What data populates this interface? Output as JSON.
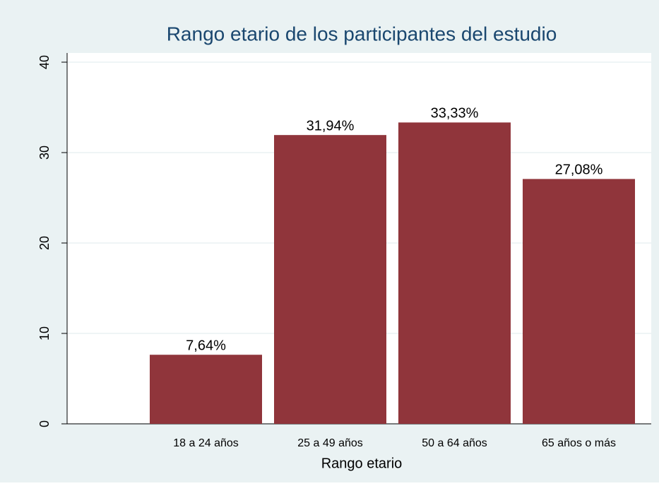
{
  "chart_data": {
    "type": "bar",
    "title": "Rango etario de los participantes del estudio",
    "x_label": "Rango etario",
    "categories": [
      "18 a 24 años",
      "25 a 49 años",
      "50 a 64 años",
      "65 años o más"
    ],
    "values": [
      7.64,
      31.94,
      33.33,
      27.08
    ],
    "value_labels": [
      "7,64%",
      "31,94%",
      "33,33%",
      "27,08%"
    ],
    "color": "#90353b",
    "ylim": [
      0,
      40
    ],
    "yticks": [
      0,
      10,
      20,
      30,
      40
    ],
    "grid": true
  }
}
